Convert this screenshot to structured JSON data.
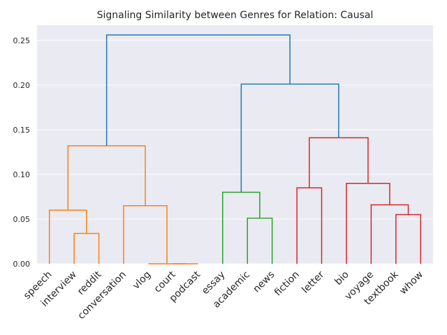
{
  "chart_data": {
    "type": "dendrogram",
    "title": "Signaling Similarity between Genres for Relation: Causal",
    "xlabel": "",
    "ylabel": "",
    "ylim": [
      0,
      0.267
    ],
    "yticks": [
      0.0,
      0.05,
      0.1,
      0.15,
      0.2,
      0.25
    ],
    "ytick_labels": [
      "0.00",
      "0.05",
      "0.10",
      "0.15",
      "0.20",
      "0.25"
    ],
    "grid": true,
    "background": "#eaeaf2",
    "leaves": [
      "speech",
      "interview",
      "reddit",
      "conversation",
      "vlog",
      "court",
      "podcast",
      "essay",
      "academic",
      "news",
      "fiction",
      "letter",
      "bio",
      "voyage",
      "textbook",
      "whow"
    ],
    "links": [
      {
        "left": "interview",
        "right": "reddit",
        "height": 0.034,
        "color": "#ff7f0e"
      },
      {
        "left": "speech",
        "right": "interview+reddit",
        "height": 0.06,
        "color": "#ff7f0e"
      },
      {
        "left": "court",
        "right": "podcast",
        "height": 0.0,
        "color": "#ff7f0e"
      },
      {
        "left": "vlog",
        "right": "court+podcast",
        "height": 0.0,
        "color": "#ff7f0e"
      },
      {
        "left": "conversation",
        "right": "vlog+court+podcast",
        "height": 0.065,
        "color": "#ff7f0e"
      },
      {
        "left": "speech+interview+reddit",
        "right": "conversation+vlog+court+podcast",
        "height": 0.132,
        "color": "#ff7f0e"
      },
      {
        "left": "academic",
        "right": "news",
        "height": 0.051,
        "color": "#2ca02c"
      },
      {
        "left": "essay",
        "right": "academic+news",
        "height": 0.08,
        "color": "#2ca02c"
      },
      {
        "left": "fiction",
        "right": "letter",
        "height": 0.085,
        "color": "#d62728"
      },
      {
        "left": "textbook",
        "right": "whow",
        "height": 0.055,
        "color": "#d62728"
      },
      {
        "left": "voyage",
        "right": "textbook+whow",
        "height": 0.066,
        "color": "#d62728"
      },
      {
        "left": "bio",
        "right": "voyage+textbook+whow",
        "height": 0.09,
        "color": "#d62728"
      },
      {
        "left": "fiction+letter",
        "right": "bio+voyage+textbook+whow",
        "height": 0.141,
        "color": "#d62728"
      },
      {
        "left": "essay+academic+news",
        "right": "fiction+letter+bio+voyage+textbook+whow",
        "height": 0.201,
        "color": "#1f77b4"
      },
      {
        "left": "speech+interview+reddit+conversation+vlog+court+podcast",
        "right": "essay+academic+news+fiction+letter+bio+voyage+textbook+whow",
        "height": 0.256,
        "color": "#1f77b4"
      }
    ]
  }
}
